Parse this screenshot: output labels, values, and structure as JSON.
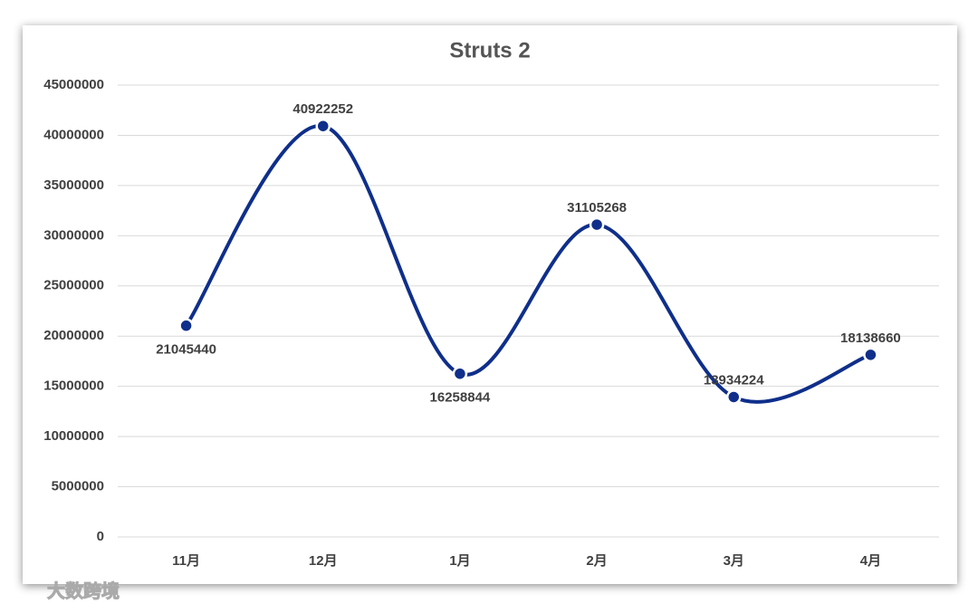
{
  "chart_data": {
    "type": "line",
    "title": "Struts 2",
    "categories": [
      "11月",
      "12月",
      "1月",
      "2月",
      "3月",
      "4月"
    ],
    "series": [
      {
        "name": "Struts 2",
        "color": "#0f2f8a",
        "values": [
          21045440,
          40922252,
          16258844,
          31105268,
          13934224,
          18138660
        ]
      }
    ],
    "ylim": [
      0,
      45000000
    ],
    "yticks": [
      0,
      5000000,
      10000000,
      15000000,
      20000000,
      25000000,
      30000000,
      35000000,
      40000000,
      45000000
    ],
    "grid": true,
    "smooth": true,
    "legend": false
  },
  "watermark": "大数跨境"
}
